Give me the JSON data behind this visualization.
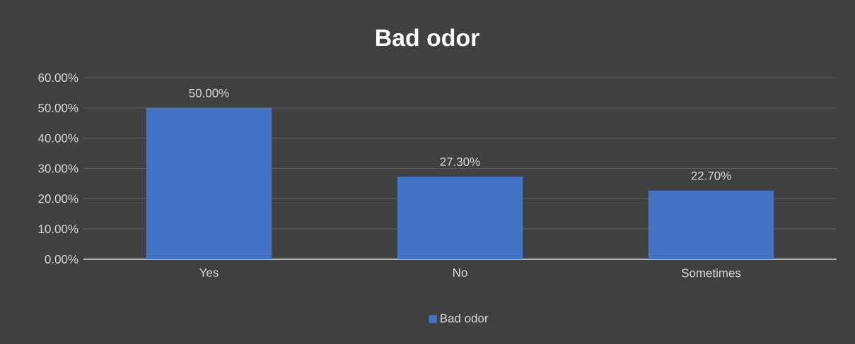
{
  "chart_data": {
    "type": "bar",
    "title": "Bad odor",
    "categories": [
      "Yes",
      "No",
      "Sometimes"
    ],
    "series": [
      {
        "name": "Bad odor",
        "color": "#4472c4",
        "values": [
          50,
          27.3,
          22.7
        ],
        "value_labels": [
          "50.00%",
          "27.30%",
          "22.70%"
        ]
      }
    ],
    "ylim": [
      0,
      60
    ],
    "yticks": [
      {
        "value": 0,
        "label": "0.00%"
      },
      {
        "value": 10,
        "label": "10.00%"
      },
      {
        "value": 20,
        "label": "20.00%"
      },
      {
        "value": 30,
        "label": "30.00%"
      },
      {
        "value": 40,
        "label": "40.00%"
      },
      {
        "value": 50,
        "label": "50.00%"
      },
      {
        "value": 60,
        "label": "60.00%"
      }
    ],
    "grid": "y",
    "legend": "bottom"
  }
}
